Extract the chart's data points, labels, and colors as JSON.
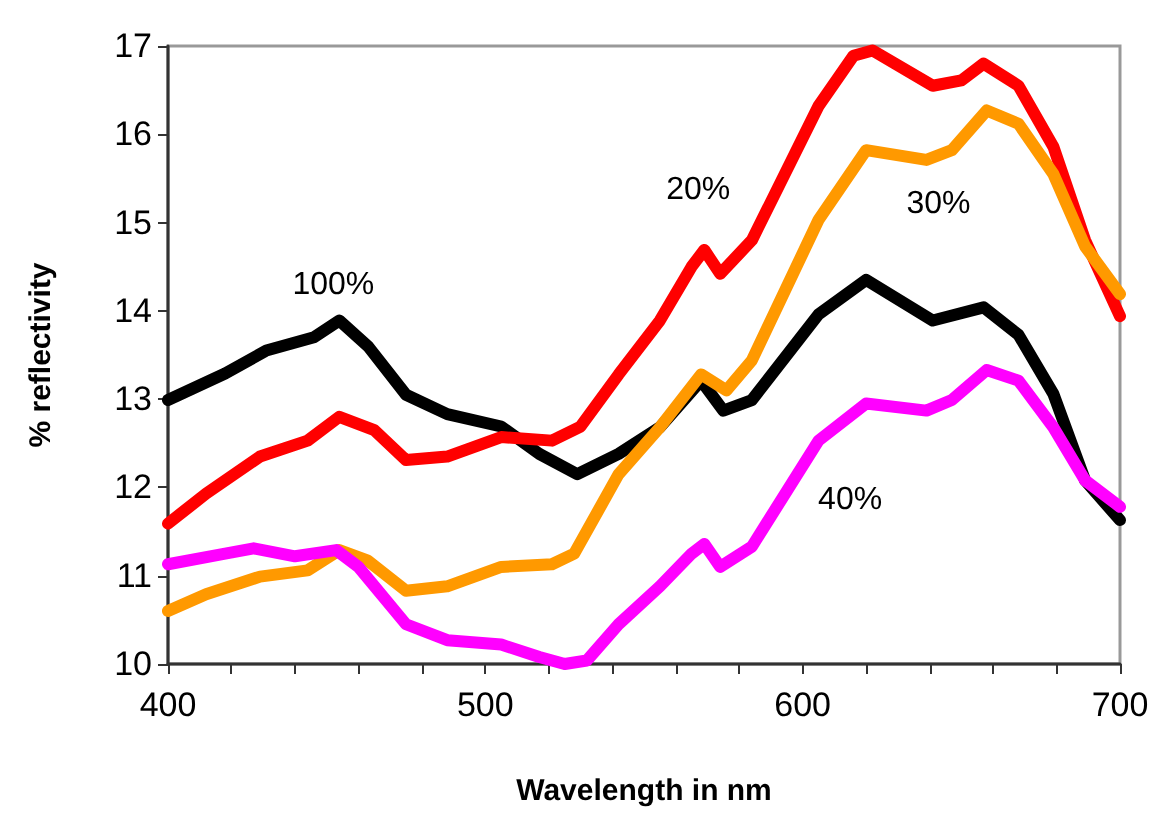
{
  "chart_data": {
    "type": "line",
    "xlabel": "Wavelength in nm",
    "ylabel": "% reflectivity",
    "xlim": [
      400,
      700
    ],
    "ylim": [
      10,
      17
    ],
    "xticks": [
      400,
      {
        "value": 420,
        "label": null
      },
      {
        "value": 440,
        "label": null
      },
      {
        "value": 460,
        "label": null
      },
      {
        "value": 480,
        "label": null
      },
      500,
      {
        "value": 520,
        "label": null
      },
      {
        "value": 540,
        "label": null
      },
      {
        "value": 560,
        "label": null
      },
      {
        "value": 580,
        "label": null
      },
      600,
      {
        "value": 620,
        "label": null
      },
      {
        "value": 640,
        "label": null
      },
      {
        "value": 660,
        "label": null
      },
      {
        "value": 680,
        "label": null
      },
      700
    ],
    "yticks": [
      10,
      11,
      12,
      13,
      14,
      15,
      16,
      17
    ],
    "grid": false,
    "legend": false,
    "marker": "none",
    "line_style": "solid",
    "series": [
      {
        "name": "100%",
        "color": "#000000",
        "x": [
          400,
          418,
          431,
          446,
          454,
          463,
          475,
          488,
          505,
          517,
          529,
          542,
          555,
          568,
          575,
          584,
          605,
          620,
          641,
          657,
          668,
          679,
          689,
          700
        ],
        "values": [
          12.99,
          13.29,
          13.55,
          13.7,
          13.89,
          13.6,
          13.05,
          12.83,
          12.69,
          12.38,
          12.15,
          12.38,
          12.68,
          13.21,
          12.87,
          12.99,
          13.96,
          14.35,
          13.89,
          14.04,
          13.73,
          13.06,
          12.08,
          11.63
        ]
      },
      {
        "name": "20%",
        "color": "#ff0000",
        "x": [
          400,
          412,
          429,
          444,
          454,
          465,
          475,
          488,
          505,
          521,
          530,
          542,
          555,
          565,
          569,
          574,
          584,
          605,
          616,
          622,
          641,
          650,
          657,
          668,
          679,
          689,
          700
        ],
        "values": [
          11.59,
          11.93,
          12.35,
          12.53,
          12.8,
          12.65,
          12.31,
          12.35,
          12.57,
          12.53,
          12.69,
          13.28,
          13.89,
          14.5,
          14.69,
          14.42,
          14.8,
          16.32,
          16.89,
          16.95,
          16.55,
          16.61,
          16.8,
          16.55,
          15.86,
          14.8,
          13.94
        ]
      },
      {
        "name": "30%",
        "color": "#ff9900",
        "x": [
          400,
          412,
          429,
          444,
          454,
          463,
          475,
          488,
          505,
          521,
          528,
          542,
          555,
          568,
          576,
          584,
          605,
          620,
          639,
          647,
          658,
          668,
          679,
          689,
          700
        ],
        "values": [
          10.6,
          10.79,
          10.99,
          11.06,
          11.29,
          11.17,
          10.83,
          10.88,
          11.1,
          11.13,
          11.25,
          12.15,
          12.68,
          13.28,
          13.1,
          13.44,
          15.03,
          15.82,
          15.71,
          15.82,
          16.27,
          16.12,
          15.55,
          14.73,
          14.19
        ]
      },
      {
        "name": "40%",
        "color": "#ff00ff",
        "x": [
          400,
          418,
          427,
          440,
          453,
          460,
          475,
          488,
          505,
          517,
          525,
          532,
          542,
          555,
          565,
          569,
          574,
          584,
          605,
          620,
          639,
          647,
          658,
          668,
          679,
          689,
          700
        ],
        "values": [
          11.13,
          11.25,
          11.31,
          11.22,
          11.29,
          11.1,
          10.45,
          10.27,
          10.22,
          10.08,
          10.0,
          10.04,
          10.45,
          10.88,
          11.25,
          11.36,
          11.1,
          11.33,
          12.53,
          12.95,
          12.87,
          12.99,
          13.33,
          13.21,
          12.68,
          12.08,
          11.78
        ]
      }
    ]
  }
}
